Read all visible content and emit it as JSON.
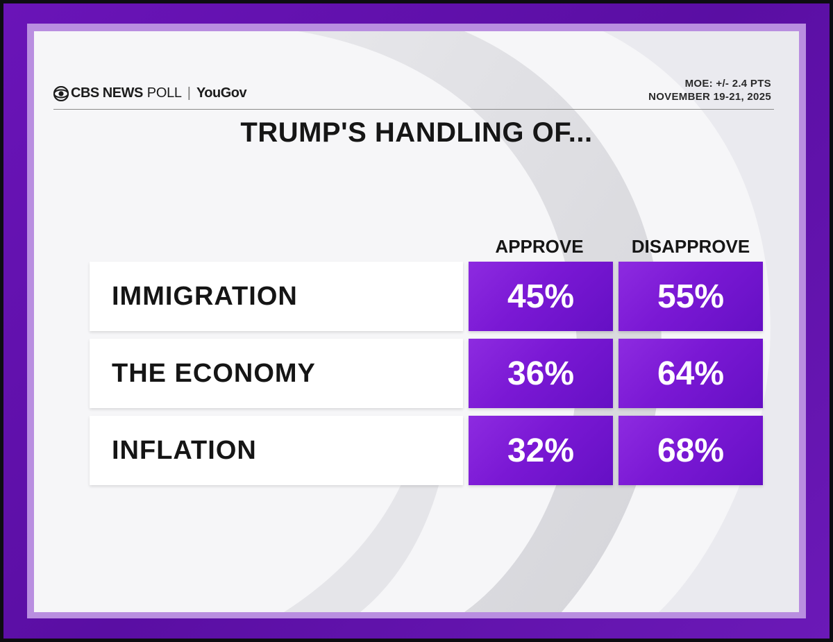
{
  "header": {
    "brand_cbs": "CBS NEWS",
    "brand_poll": "POLL",
    "separator": "|",
    "brand_partner": "YouGov",
    "moe": "MOE: +/- 2.4 PTS",
    "date": "NOVEMBER 19-21, 2025"
  },
  "colors": {
    "accent": "#7a18d4",
    "frame": "#5a0ea3",
    "panel": "#f6f6f8"
  },
  "chart_data": {
    "type": "table",
    "title": "TRUMP'S HANDLING OF...",
    "columns": [
      "APPROVE",
      "DISAPPROVE"
    ],
    "rows": [
      {
        "label": "IMMIGRATION",
        "approve": "45%",
        "disapprove": "55%"
      },
      {
        "label": "THE ECONOMY",
        "approve": "36%",
        "disapprove": "64%"
      },
      {
        "label": "INFLATION",
        "approve": "32%",
        "disapprove": "68%"
      }
    ],
    "values_approve": [
      45,
      36,
      32
    ],
    "values_disapprove": [
      55,
      64,
      68
    ]
  }
}
